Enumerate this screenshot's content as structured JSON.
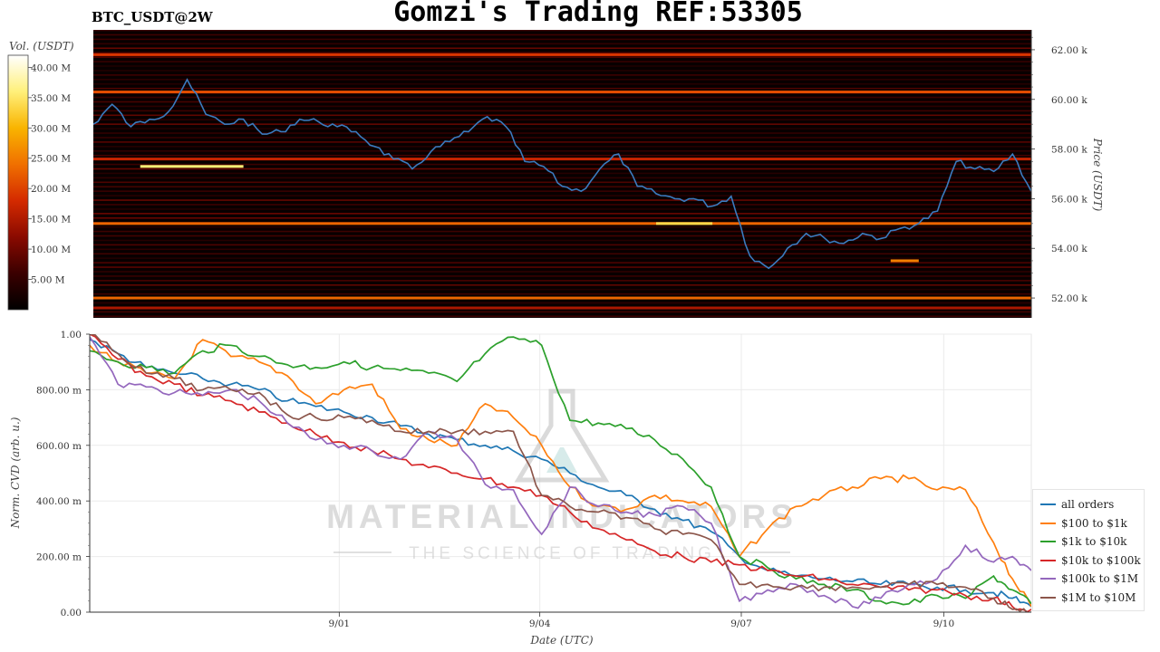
{
  "header": {
    "title": "Gomzi's Trading REF:53305",
    "pair": "BTC_USDT@2W"
  },
  "chart_data": [
    {
      "type": "heatmap",
      "title": "BTC_USDT@2W",
      "ylabel": "Price (USDT)",
      "ylim": [
        51.2,
        62.8
      ],
      "y_ticks": [
        "52.00 k",
        "54.00 k",
        "56.00 k",
        "58.00 k",
        "60.00 k",
        "62.00 k"
      ],
      "y_tick_values": [
        52,
        54,
        56,
        58,
        60,
        62
      ],
      "colorbar": {
        "label": "Vol. (USDT)",
        "ticks": [
          "5.00 M",
          "10.00 M",
          "15.00 M",
          "20.00 M",
          "25.00 M",
          "30.00 M",
          "35.00 M",
          "40.00 M"
        ],
        "tick_values": [
          5,
          10,
          15,
          20,
          25,
          30,
          35,
          40
        ],
        "range": [
          0,
          42
        ],
        "colormap": [
          "#000000",
          "#3a0000",
          "#8a0a00",
          "#d42a00",
          "#f07000",
          "#f9b400",
          "#fff07a",
          "#ffffff"
        ]
      },
      "price_line": {
        "color": "#3a7bbf",
        "x": [
          0,
          2,
          4,
          6,
          8,
          10,
          12,
          14,
          16,
          18,
          20,
          22,
          24,
          26,
          28,
          30,
          32,
          34,
          36,
          38,
          40,
          42,
          44,
          46,
          48,
          50,
          52,
          54,
          56,
          58,
          60,
          62,
          64,
          66,
          68,
          70,
          72,
          74,
          76,
          78,
          80,
          82,
          84,
          86,
          88,
          90,
          92,
          94,
          96,
          98,
          100
        ],
        "y": [
          59.0,
          59.8,
          58.9,
          59.2,
          59.5,
          60.8,
          59.4,
          59.0,
          59.2,
          58.6,
          58.7,
          59.2,
          59.1,
          58.9,
          58.7,
          58.1,
          57.6,
          57.2,
          57.9,
          58.3,
          58.7,
          59.3,
          58.9,
          57.5,
          57.3,
          56.5,
          56.3,
          57.2,
          57.8,
          56.5,
          56.2,
          56.0,
          56.0,
          55.7,
          56.1,
          53.7,
          53.2,
          54.0,
          54.6,
          54.4,
          54.2,
          54.6,
          54.4,
          54.8,
          55.0,
          55.5,
          57.5,
          57.2,
          57.1,
          57.8,
          56.3
        ]
      },
      "bands": [
        {
          "price": 61.8,
          "from": 0,
          "to": 100,
          "level": 0.45
        },
        {
          "price": 60.3,
          "from": 0,
          "to": 100,
          "level": 0.5
        },
        {
          "price": 57.6,
          "from": 0,
          "to": 100,
          "level": 0.4
        },
        {
          "price": 57.3,
          "from": 5,
          "to": 16,
          "level": 0.85
        },
        {
          "price": 55.0,
          "from": 0,
          "to": 100,
          "level": 0.55
        },
        {
          "price": 55.0,
          "from": 60,
          "to": 66,
          "level": 0.8
        },
        {
          "price": 53.5,
          "from": 85,
          "to": 88,
          "level": 0.6
        },
        {
          "price": 52.0,
          "from": 0,
          "to": 100,
          "level": 0.55
        },
        {
          "price": 51.6,
          "from": 0,
          "to": 100,
          "level": 0.35
        }
      ]
    },
    {
      "type": "line",
      "xlabel": "Date (UTC)",
      "ylabel": "Norm. CVD (arb. u.)",
      "ylim": [
        0,
        1
      ],
      "xlim": [
        0,
        100
      ],
      "y_ticks": [
        "0.00",
        "200.00 m",
        "400.00 m",
        "600.00 m",
        "800.00 m",
        "1.00"
      ],
      "y_tick_values": [
        0,
        0.2,
        0.4,
        0.6,
        0.8,
        1.0
      ],
      "x_ticks": [
        "9/01",
        "9/04",
        "9/07",
        "9/10"
      ],
      "x_tick_positions": [
        26.5,
        47.8,
        69.2,
        90.7
      ],
      "grid": true,
      "legend_position": "right",
      "series": [
        {
          "name": "all orders",
          "color": "#1f77b4",
          "x": [
            0,
            3,
            6,
            9,
            12,
            15,
            18,
            21,
            24,
            27,
            30,
            33,
            36,
            39,
            42,
            45,
            48,
            51,
            54,
            57,
            60,
            63,
            66,
            69,
            72,
            75,
            78,
            81,
            84,
            87,
            90,
            93,
            96,
            98,
            100
          ],
          "y": [
            0.98,
            0.93,
            0.88,
            0.86,
            0.84,
            0.82,
            0.8,
            0.76,
            0.74,
            0.72,
            0.7,
            0.67,
            0.64,
            0.62,
            0.6,
            0.58,
            0.55,
            0.5,
            0.45,
            0.42,
            0.37,
            0.33,
            0.29,
            0.2,
            0.15,
            0.13,
            0.12,
            0.11,
            0.1,
            0.1,
            0.09,
            0.08,
            0.07,
            0.05,
            0.02
          ]
        },
        {
          "name": "$100 to $1k",
          "color": "#ff7f0e",
          "x": [
            0,
            3,
            6,
            9,
            12,
            15,
            18,
            21,
            24,
            27,
            30,
            33,
            36,
            39,
            42,
            45,
            48,
            51,
            54,
            57,
            60,
            63,
            66,
            69,
            72,
            75,
            78,
            81,
            84,
            87,
            90,
            93,
            96,
            98,
            100
          ],
          "y": [
            0.96,
            0.9,
            0.86,
            0.84,
            0.98,
            0.92,
            0.9,
            0.85,
            0.75,
            0.8,
            0.82,
            0.66,
            0.62,
            0.6,
            0.75,
            0.7,
            0.6,
            0.45,
            0.38,
            0.37,
            0.42,
            0.4,
            0.38,
            0.2,
            0.3,
            0.38,
            0.42,
            0.45,
            0.48,
            0.48,
            0.44,
            0.44,
            0.25,
            0.12,
            0.02
          ]
        },
        {
          "name": "$1k to $10k",
          "color": "#2ca02c",
          "x": [
            0,
            3,
            6,
            9,
            12,
            15,
            18,
            21,
            24,
            27,
            30,
            33,
            36,
            39,
            42,
            45,
            48,
            51,
            54,
            57,
            60,
            63,
            66,
            69,
            72,
            75,
            78,
            81,
            84,
            87,
            90,
            93,
            96,
            98,
            100
          ],
          "y": [
            0.94,
            0.9,
            0.88,
            0.86,
            0.94,
            0.96,
            0.92,
            0.89,
            0.88,
            0.9,
            0.88,
            0.87,
            0.86,
            0.83,
            0.93,
            0.99,
            0.96,
            0.69,
            0.68,
            0.66,
            0.62,
            0.55,
            0.45,
            0.2,
            0.16,
            0.12,
            0.1,
            0.08,
            0.04,
            0.03,
            0.06,
            0.05,
            0.13,
            0.08,
            0.03
          ]
        },
        {
          "name": "$10k to $100k",
          "color": "#d62728",
          "x": [
            0,
            3,
            6,
            9,
            12,
            15,
            18,
            21,
            24,
            27,
            30,
            33,
            36,
            39,
            42,
            45,
            48,
            51,
            54,
            57,
            60,
            63,
            66,
            69,
            72,
            75,
            78,
            81,
            84,
            87,
            90,
            93,
            96,
            98,
            100
          ],
          "y": [
            1.0,
            0.91,
            0.85,
            0.82,
            0.78,
            0.76,
            0.72,
            0.68,
            0.64,
            0.61,
            0.58,
            0.55,
            0.52,
            0.5,
            0.48,
            0.45,
            0.42,
            0.36,
            0.3,
            0.26,
            0.22,
            0.2,
            0.18,
            0.17,
            0.15,
            0.13,
            0.12,
            0.1,
            0.09,
            0.08,
            0.08,
            0.06,
            0.05,
            0.02,
            0.01
          ]
        },
        {
          "name": "$100k to $1M",
          "color": "#9467bd",
          "x": [
            0,
            3,
            6,
            9,
            12,
            15,
            18,
            21,
            24,
            27,
            30,
            33,
            36,
            39,
            42,
            45,
            48,
            51,
            54,
            57,
            60,
            63,
            66,
            69,
            72,
            75,
            78,
            81,
            84,
            87,
            90,
            93,
            96,
            98,
            100
          ],
          "y": [
            0.99,
            0.82,
            0.81,
            0.79,
            0.78,
            0.8,
            0.76,
            0.68,
            0.62,
            0.6,
            0.58,
            0.55,
            0.65,
            0.62,
            0.46,
            0.44,
            0.28,
            0.45,
            0.38,
            0.36,
            0.35,
            0.38,
            0.32,
            0.04,
            0.08,
            0.1,
            0.06,
            0.02,
            0.05,
            0.1,
            0.12,
            0.24,
            0.18,
            0.2,
            0.15
          ]
        },
        {
          "name": "$1M to $10M",
          "color": "#8c564b",
          "x": [
            0,
            3,
            6,
            9,
            12,
            15,
            18,
            21,
            24,
            27,
            30,
            33,
            36,
            39,
            42,
            45,
            48,
            51,
            54,
            57,
            60,
            63,
            66,
            69,
            72,
            75,
            78,
            81,
            84,
            87,
            90,
            93,
            96,
            98,
            100
          ],
          "y": [
            1.0,
            0.93,
            0.86,
            0.84,
            0.8,
            0.8,
            0.79,
            0.71,
            0.7,
            0.7,
            0.69,
            0.65,
            0.65,
            0.65,
            0.65,
            0.65,
            0.42,
            0.38,
            0.36,
            0.34,
            0.3,
            0.28,
            0.26,
            0.1,
            0.1,
            0.09,
            0.09,
            0.09,
            0.09,
            0.1,
            0.1,
            0.09,
            0.05,
            0.01,
            0.0
          ]
        }
      ]
    }
  ],
  "watermark": {
    "line1": "MATERIAL INDICATORS",
    "line2": "THE SCIENCE OF TRADING"
  }
}
